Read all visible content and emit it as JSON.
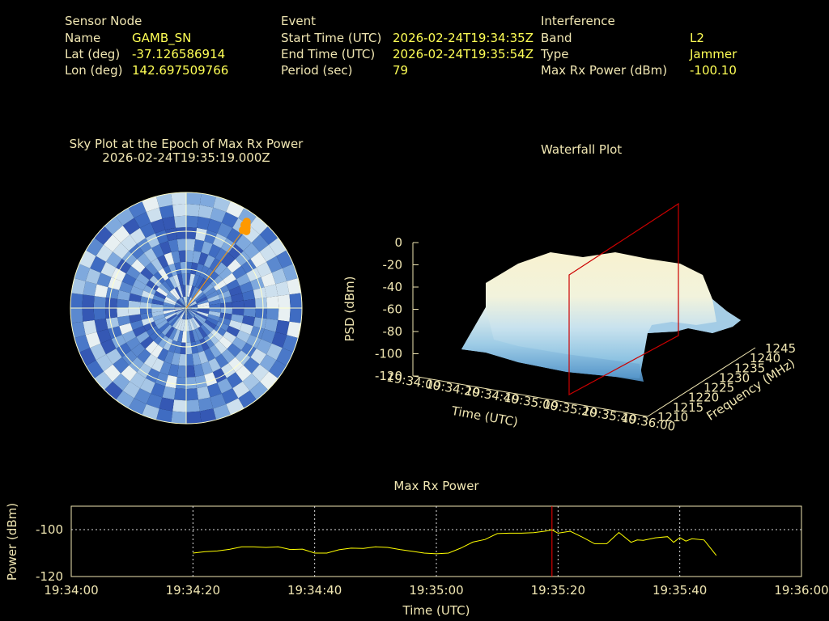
{
  "colors": {
    "label": "#f0e6b2",
    "value": "#ffff55",
    "axis": "#f0e6b2",
    "trace": "#ffff00",
    "marker": "#ff0000",
    "sat": "#ff9900"
  },
  "info": {
    "sensor": {
      "heading": "Sensor Node",
      "rows": [
        {
          "label": "Name",
          "value": "GAMB_SN"
        },
        {
          "label": "Lat (deg)",
          "value": "-37.126586914"
        },
        {
          "label": "Lon (deg)",
          "value": "142.697509766"
        }
      ]
    },
    "event": {
      "heading": "Event",
      "rows": [
        {
          "label": "Start Time (UTC)",
          "value": "2026-02-24T19:34:35Z"
        },
        {
          "label": "End Time (UTC)",
          "value": "2026-02-24T19:35:54Z"
        },
        {
          "label": "Period (sec)",
          "value": "79"
        }
      ]
    },
    "interference": {
      "heading": "Interference",
      "rows": [
        {
          "label": "Band",
          "value": "L2"
        },
        {
          "label": "Type",
          "value": "Jammer"
        },
        {
          "label": "Max Rx Power (dBm)",
          "value": "-100.10"
        }
      ]
    }
  },
  "sky": {
    "title": "Sky Plot at the Epoch of Max Rx Power",
    "epoch": "2026-02-24T19:35:19.000Z"
  },
  "chart_data": [
    {
      "type": "scatter",
      "title": "Sky Plot at the Epoch of Max Rx Power",
      "subtitle": "2026-02-24T19:35:19.000Z",
      "azimuth_deg": [
        35,
        36,
        37,
        38,
        36,
        35
      ],
      "elevation_deg": [
        8,
        10,
        12,
        14,
        15,
        11
      ],
      "grid": true
    },
    {
      "type": "heatmap",
      "title": "Waterfall Plot",
      "xlabel": "Time (UTC)",
      "ylabel": "Frequency (MHz)",
      "zlabel": "PSD (dBm)",
      "x_ticks": [
        "19:34:00",
        "19:34:20",
        "19:34:40",
        "19:35:00",
        "19:35:20",
        "19:35:40",
        "19:36:00"
      ],
      "y_ticks": [
        "1210",
        "1215",
        "1220",
        "1225",
        "1230",
        "1235",
        "1240",
        "1245"
      ],
      "z_ticks": [
        "0",
        "-20",
        "-40",
        "-60",
        "-80",
        "-100",
        "-120"
      ],
      "zlim": [
        -120,
        0
      ],
      "marker_time": "19:35:19"
    },
    {
      "type": "line",
      "title": "Max Rx Power",
      "xlabel": "Time (UTC)",
      "ylabel": "Power (dBm)",
      "x_ticks": [
        "19:34:00",
        "19:34:20",
        "19:34:40",
        "19:35:00",
        "19:35:20",
        "19:35:40",
        "19:36:00"
      ],
      "y_ticks": [
        "-100",
        "-120"
      ],
      "xlim_sec": [
        0,
        120
      ],
      "ylim": [
        -120,
        -90
      ],
      "marker_sec": 79,
      "grid": true,
      "x_sec": [
        20,
        22,
        24,
        26,
        28,
        30,
        32,
        34,
        36,
        38,
        40,
        42,
        44,
        46,
        48,
        50,
        52,
        54,
        56,
        58,
        60,
        62,
        64,
        66,
        68,
        70,
        72,
        74,
        76,
        78,
        79,
        80,
        82,
        84,
        86,
        88,
        90,
        92,
        93,
        94,
        96,
        98,
        99,
        100,
        101,
        102,
        104,
        106
      ],
      "values": [
        -110.0,
        -109.4,
        -109.1,
        -108.4,
        -107.3,
        -107.3,
        -107.6,
        -107.3,
        -108.5,
        -108.3,
        -110.0,
        -110.0,
        -108.6,
        -107.9,
        -108.0,
        -107.3,
        -107.6,
        -108.5,
        -109.2,
        -110.0,
        -110.3,
        -110.0,
        -107.9,
        -105.3,
        -104.2,
        -101.7,
        -101.5,
        -101.5,
        -101.3,
        -100.6,
        -100.1,
        -101.5,
        -100.7,
        -103.2,
        -106.0,
        -106.0,
        -101.2,
        -105.4,
        -104.4,
        -104.6,
        -103.5,
        -103.0,
        -105.4,
        -103.4,
        -104.9,
        -103.9,
        -104.4,
        -111.0
      ]
    }
  ]
}
